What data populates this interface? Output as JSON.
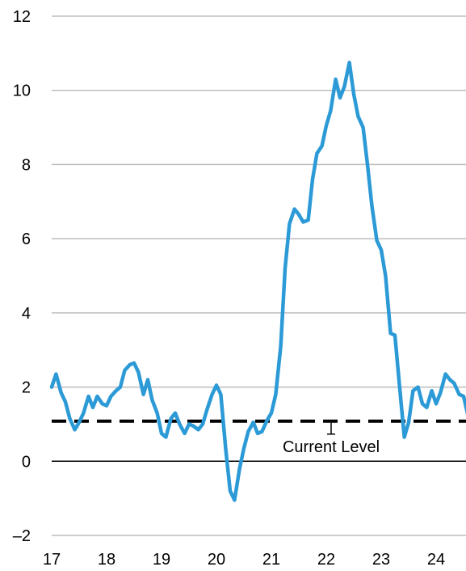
{
  "chart_data": {
    "type": "line",
    "title": "",
    "xlabel": "",
    "ylabel": "",
    "ylim": [
      -2,
      12
    ],
    "xlim": [
      17,
      24.6
    ],
    "grid": true,
    "legend": "none",
    "y_ticks": [
      -2,
      0,
      2,
      4,
      6,
      8,
      10,
      12
    ],
    "y_tick_labels": [
      "–2",
      "0",
      "2",
      "4",
      "6",
      "8",
      "10",
      "12"
    ],
    "x_ticks": [
      17,
      18,
      19,
      20,
      21,
      22,
      23,
      24
    ],
    "x_tick_labels": [
      "17",
      "18",
      "19",
      "20",
      "21",
      "22",
      "23",
      "24"
    ],
    "series": [
      {
        "color": "#2b9ad6",
        "x": [
          17.0,
          17.08,
          17.17,
          17.25,
          17.33,
          17.42,
          17.5,
          17.58,
          17.67,
          17.75,
          17.83,
          17.92,
          18.0,
          18.08,
          18.17,
          18.25,
          18.33,
          18.42,
          18.5,
          18.58,
          18.67,
          18.75,
          18.83,
          18.92,
          19.0,
          19.08,
          19.17,
          19.25,
          19.33,
          19.42,
          19.5,
          19.58,
          19.67,
          19.75,
          19.83,
          19.92,
          20.0,
          20.08,
          20.17,
          20.25,
          20.33,
          20.42,
          20.5,
          20.58,
          20.67,
          20.75,
          20.83,
          20.92,
          21.0,
          21.08,
          21.17,
          21.25,
          21.33,
          21.42,
          21.5,
          21.58,
          21.67,
          21.75,
          21.83,
          21.92,
          22.0,
          22.08,
          22.17,
          22.25,
          22.33,
          22.42,
          22.5,
          22.58,
          22.67,
          22.75,
          22.83,
          22.92,
          23.0,
          23.08,
          23.17,
          23.25,
          23.33,
          23.42,
          23.5,
          23.58,
          23.67,
          23.75,
          23.83,
          23.92,
          24.0,
          24.08,
          24.17,
          24.25,
          24.33,
          24.42,
          24.5,
          24.6
        ],
        "y": [
          2.0,
          2.35,
          1.85,
          1.6,
          1.15,
          0.85,
          1.05,
          1.3,
          1.75,
          1.45,
          1.75,
          1.55,
          1.5,
          1.75,
          1.9,
          2.0,
          2.45,
          2.6,
          2.65,
          2.4,
          1.8,
          2.2,
          1.65,
          1.3,
          0.75,
          0.65,
          1.15,
          1.3,
          1.0,
          0.75,
          1.0,
          0.95,
          0.85,
          1.0,
          1.4,
          1.8,
          2.05,
          1.8,
          0.3,
          -0.8,
          -1.05,
          -0.2,
          0.35,
          0.8,
          1.05,
          0.75,
          0.8,
          1.1,
          1.3,
          1.8,
          3.1,
          5.2,
          6.4,
          6.8,
          6.65,
          6.45,
          6.5,
          7.6,
          8.3,
          8.5,
          9.05,
          9.45,
          10.3,
          9.8,
          10.1,
          10.75,
          9.9,
          9.3,
          9.0,
          8.0,
          6.9,
          5.95,
          5.7,
          5.0,
          3.45,
          3.4,
          2.1,
          0.65,
          1.05,
          1.9,
          2.0,
          1.55,
          1.45,
          1.9,
          1.55,
          1.85,
          2.35,
          2.2,
          2.1,
          1.8,
          1.75,
          1.1
        ]
      }
    ],
    "reference_line": {
      "y": 1.08,
      "label": "Current Level",
      "color": "#000000"
    }
  }
}
